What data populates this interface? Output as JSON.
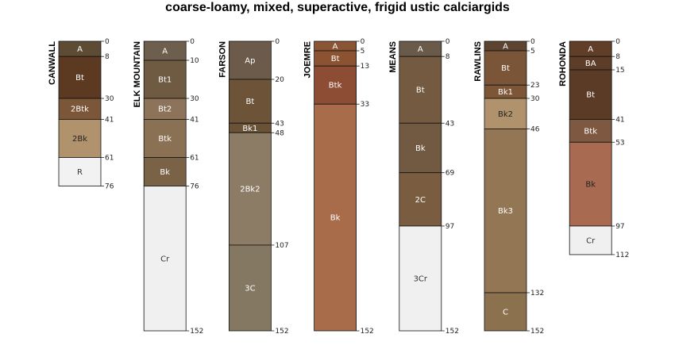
{
  "chart_data": {
    "type": "soil-profile-sketch",
    "title": "coarse-loamy, mixed, superactive, frigid ustic calciargids",
    "depth_units": "cm",
    "max_depth": 152,
    "profiles": [
      {
        "name": "CANWALL",
        "horizons": [
          {
            "name": "A",
            "top": 0,
            "bottom": 8,
            "color": "#5e4b34",
            "text": "#ffffff"
          },
          {
            "name": "Bt",
            "top": 8,
            "bottom": 30,
            "color": "#5c3a22",
            "text": "#ffffff"
          },
          {
            "name": "2Btk",
            "top": 30,
            "bottom": 41,
            "color": "#7b5638",
            "text": "#ffffff"
          },
          {
            "name": "2Bk",
            "top": 41,
            "bottom": 61,
            "color": "#b0936c",
            "text": "#222222"
          },
          {
            "name": "R",
            "top": 61,
            "bottom": 76,
            "color": "#f2f2f2",
            "text": "#333333"
          }
        ]
      },
      {
        "name": "ELK MOUNTAIN",
        "horizons": [
          {
            "name": "A",
            "top": 0,
            "bottom": 10,
            "color": "#6e5e4d",
            "text": "#ffffff"
          },
          {
            "name": "Bt1",
            "top": 10,
            "bottom": 30,
            "color": "#6f5a42",
            "text": "#ffffff"
          },
          {
            "name": "Bt2",
            "top": 30,
            "bottom": 41,
            "color": "#8d735a",
            "text": "#ffffff"
          },
          {
            "name": "Btk",
            "top": 41,
            "bottom": 61,
            "color": "#8b7154",
            "text": "#ffffff"
          },
          {
            "name": "Bk",
            "top": 61,
            "bottom": 76,
            "color": "#7a6247",
            "text": "#ffffff"
          },
          {
            "name": "Cr",
            "top": 76,
            "bottom": 152,
            "color": "#f0f0f0",
            "text": "#333333"
          }
        ]
      },
      {
        "name": "FARSON",
        "horizons": [
          {
            "name": "Ap",
            "top": 0,
            "bottom": 20,
            "color": "#6c5b4b",
            "text": "#ffffff"
          },
          {
            "name": "Bt",
            "top": 20,
            "bottom": 43,
            "color": "#6d5438",
            "text": "#ffffff"
          },
          {
            "name": "Bk1",
            "top": 43,
            "bottom": 48,
            "color": "#6a5236",
            "text": "#ffffff"
          },
          {
            "name": "2Bk2",
            "top": 48,
            "bottom": 107,
            "color": "#8d7c65",
            "text": "#ffffff"
          },
          {
            "name": "3C",
            "top": 107,
            "bottom": 152,
            "color": "#857862",
            "text": "#ffffff"
          }
        ]
      },
      {
        "name": "JOEMRE",
        "horizons": [
          {
            "name": "A",
            "top": 0,
            "bottom": 5,
            "color": "#8a5535",
            "text": "#ffffff"
          },
          {
            "name": "Bt",
            "top": 5,
            "bottom": 13,
            "color": "#8b5332",
            "text": "#ffffff"
          },
          {
            "name": "Btk",
            "top": 13,
            "bottom": 33,
            "color": "#8d4c34",
            "text": "#ffffff"
          },
          {
            "name": "Bk",
            "top": 33,
            "bottom": 152,
            "color": "#a86c4a",
            "text": "#ffffff"
          }
        ]
      },
      {
        "name": "MEANS",
        "horizons": [
          {
            "name": "A",
            "top": 0,
            "bottom": 8,
            "color": "#6a5a4a",
            "text": "#ffffff"
          },
          {
            "name": "Bt",
            "top": 8,
            "bottom": 43,
            "color": "#735a40",
            "text": "#ffffff"
          },
          {
            "name": "Bk",
            "top": 43,
            "bottom": 69,
            "color": "#725a42",
            "text": "#ffffff"
          },
          {
            "name": "2C",
            "top": 69,
            "bottom": 97,
            "color": "#7a5c40",
            "text": "#ffffff"
          },
          {
            "name": "3Cr",
            "top": 97,
            "bottom": 152,
            "color": "#f0f0f0",
            "text": "#333333"
          }
        ]
      },
      {
        "name": "RAWLINS",
        "horizons": [
          {
            "name": "A",
            "top": 0,
            "bottom": 5,
            "color": "#5c4430",
            "text": "#ffffff"
          },
          {
            "name": "Bt",
            "top": 5,
            "bottom": 23,
            "color": "#7b5538",
            "text": "#ffffff"
          },
          {
            "name": "Bk1",
            "top": 23,
            "bottom": 30,
            "color": "#7d5638",
            "text": "#ffffff"
          },
          {
            "name": "Bk2",
            "top": 30,
            "bottom": 46,
            "color": "#b0936c",
            "text": "#222222"
          },
          {
            "name": "Bk3",
            "top": 46,
            "bottom": 132,
            "color": "#937653",
            "text": "#ffffff"
          },
          {
            "name": "C",
            "top": 132,
            "bottom": 152,
            "color": "#8c714e",
            "text": "#ffffff"
          }
        ]
      },
      {
        "name": "ROHONDA",
        "horizons": [
          {
            "name": "A",
            "top": 0,
            "bottom": 8,
            "color": "#613e27",
            "text": "#ffffff"
          },
          {
            "name": "BA",
            "top": 8,
            "bottom": 15,
            "color": "#5e3d28",
            "text": "#ffffff"
          },
          {
            "name": "Bt",
            "top": 15,
            "bottom": 41,
            "color": "#5c3b26",
            "text": "#ffffff"
          },
          {
            "name": "Btk",
            "top": 41,
            "bottom": 53,
            "color": "#7e5840",
            "text": "#ffffff"
          },
          {
            "name": "Bk",
            "top": 53,
            "bottom": 97,
            "color": "#a96a52",
            "text": "#222222"
          },
          {
            "name": "Cr",
            "top": 97,
            "bottom": 112,
            "color": "#f0f0f0",
            "text": "#333333"
          }
        ]
      }
    ]
  }
}
